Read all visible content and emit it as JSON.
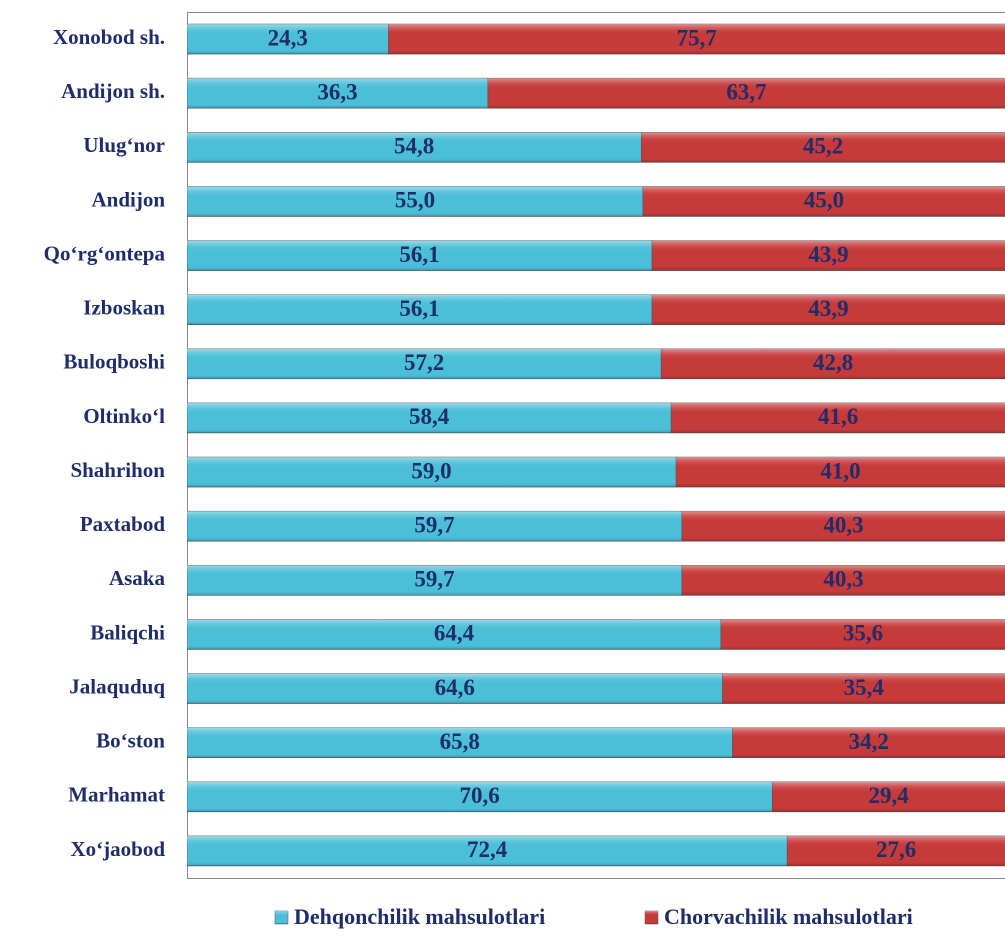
{
  "chart_data": {
    "type": "stacked-barh",
    "categories": [
      "Xonobod sh.",
      "Andijon sh.",
      "Ulug‘nor",
      "Andijon",
      "Qo‘rg‘ontepa",
      "Izboskan",
      "Buloqboshi",
      "Oltinko‘l",
      "Shahrihon",
      "Paxtabod",
      "Asaka",
      "Baliqchi",
      "Jalaquduq",
      "Bo‘ston",
      "Marhamat",
      "Xo‘jaobod"
    ],
    "series": [
      {
        "name": "Dehqonchilik mahsulotlari",
        "color": "#4cbfd8",
        "values": [
          24.3,
          36.3,
          54.8,
          55.0,
          56.1,
          56.1,
          57.2,
          58.4,
          59.0,
          59.7,
          59.7,
          64.4,
          64.6,
          65.8,
          70.6,
          72.4
        ],
        "value_labels": [
          "24,3",
          "36,3",
          "54,8",
          "55,0",
          "56,1",
          "56,1",
          "57,2",
          "58,4",
          "59,0",
          "59,7",
          "59,7",
          "64,4",
          "64,6",
          "65,8",
          "70,6",
          "72,4"
        ]
      },
      {
        "name": "Chorvachilik mahsulotlari",
        "color": "#c73a3a",
        "values": [
          75.7,
          63.7,
          45.2,
          45.0,
          43.9,
          43.9,
          42.8,
          41.6,
          41.0,
          40.3,
          40.3,
          35.6,
          35.4,
          34.2,
          29.4,
          27.6
        ],
        "value_labels": [
          "75,7",
          "63,7",
          "45,2",
          "45,0",
          "43,9",
          "43,9",
          "42,8",
          "41,6",
          "41,0",
          "40,3",
          "40,3",
          "35,6",
          "35,4",
          "34,2",
          "29,4",
          "27,6"
        ]
      }
    ],
    "xlim": [
      0,
      100
    ],
    "legend": "bottom"
  }
}
